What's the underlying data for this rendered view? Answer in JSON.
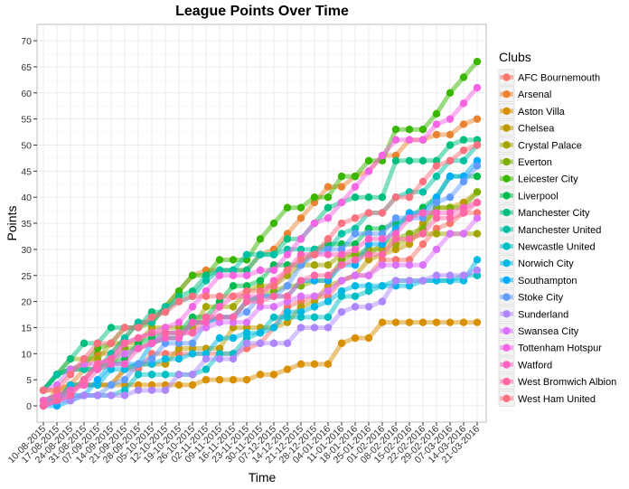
{
  "chart_data": {
    "type": "line",
    "title": "League Points Over Time",
    "xlabel": "Time",
    "ylabel": "Points",
    "ylim": [
      -3,
      73
    ],
    "yticks": [
      0,
      5,
      10,
      15,
      20,
      25,
      30,
      35,
      40,
      45,
      50,
      55,
      60,
      65,
      70
    ],
    "grid": true,
    "legend_title": "Clubs",
    "legend_position": "right",
    "categories": [
      "10-08-2015",
      "17-08-2015",
      "24-08-2015",
      "31-08-2015",
      "07-09-2015",
      "14-09-2015",
      "21-09-2015",
      "28-09-2015",
      "05-10-2015",
      "12-10-2015",
      "19-10-2015",
      "26-10-2015",
      "02-11-2015",
      "09-11-2015",
      "16-11-2015",
      "23-11-2015",
      "30-11-2015",
      "07-12-2015",
      "14-12-2015",
      "21-12-2015",
      "28-12-2015",
      "04-01-2016",
      "11-01-2016",
      "18-01-2016",
      "25-01-2016",
      "01-02-2016",
      "08-02-2016",
      "15-02-2016",
      "22-02-2016",
      "29-02-2016",
      "07-03-2016",
      "14-03-2016",
      "21-03-2016"
    ],
    "series": [
      {
        "name": "AFC Bournemouth",
        "color": "#F8766D",
        "values": [
          0,
          1,
          4,
          4,
          4,
          4,
          7,
          7,
          10,
          10,
          10,
          10,
          10,
          10,
          10,
          11,
          12,
          15,
          19,
          20,
          21,
          21,
          24,
          25,
          25,
          28,
          28,
          28,
          31,
          34,
          35,
          37,
          37
        ]
      },
      {
        "name": "Arsenal",
        "color": "#EA8331",
        "values": [
          0,
          3,
          4,
          7,
          10,
          10,
          13,
          16,
          16,
          19,
          22,
          25,
          26,
          26,
          26,
          26,
          29,
          30,
          33,
          36,
          39,
          42,
          42,
          44,
          45,
          48,
          48,
          51,
          51,
          52,
          52,
          54,
          55
        ]
      },
      {
        "name": "Aston Villa",
        "color": "#D89000",
        "values": [
          3,
          3,
          4,
          4,
          4,
          4,
          4,
          4,
          4,
          4,
          4,
          4,
          5,
          5,
          5,
          5,
          6,
          6,
          7,
          8,
          8,
          8,
          12,
          13,
          13,
          16,
          16,
          16,
          16,
          16,
          16,
          16,
          16
        ]
      },
      {
        "name": "Chelsea",
        "color": "#C09B00",
        "values": [
          1,
          1,
          4,
          4,
          4,
          4,
          7,
          8,
          8,
          8,
          11,
          11,
          11,
          11,
          15,
          15,
          15,
          15,
          16,
          19,
          20,
          23,
          24,
          25,
          28,
          29,
          30,
          31,
          35,
          38,
          38,
          39,
          41
        ]
      },
      {
        "name": "Crystal Palace",
        "color": "#A3A500",
        "values": [
          3,
          6,
          9,
          9,
          9,
          12,
          12,
          12,
          15,
          15,
          15,
          15,
          19,
          19,
          19,
          22,
          23,
          23,
          25,
          27,
          27,
          27,
          29,
          29,
          30,
          30,
          31,
          32,
          33,
          33,
          33,
          33,
          33
        ]
      },
      {
        "name": "Everton",
        "color": "#7CAE00",
        "values": [
          1,
          2,
          3,
          5,
          8,
          8,
          11,
          11,
          12,
          13,
          13,
          16,
          16,
          17,
          17,
          20,
          21,
          22,
          23,
          23,
          24,
          24,
          28,
          29,
          29,
          31,
          32,
          33,
          34,
          38,
          38,
          38,
          41
        ]
      },
      {
        "name": "Leicester City",
        "color": "#39B600",
        "values": [
          3,
          6,
          7,
          8,
          11,
          12,
          15,
          15,
          16,
          19,
          22,
          25,
          25,
          28,
          28,
          28,
          32,
          35,
          38,
          38,
          40,
          40,
          44,
          44,
          47,
          47,
          53,
          53,
          53,
          56,
          60,
          63,
          66
        ]
      },
      {
        "name": "Liverpool",
        "color": "#00BB4E",
        "values": [
          3,
          6,
          7,
          7,
          7,
          8,
          9,
          12,
          13,
          14,
          14,
          17,
          17,
          20,
          23,
          23,
          24,
          27,
          27,
          27,
          30,
          31,
          31,
          31,
          34,
          34,
          35,
          36,
          38,
          40,
          44,
          44,
          44
        ]
      },
      {
        "name": "Manchester City",
        "color": "#00BF7D",
        "values": [
          3,
          6,
          9,
          12,
          12,
          15,
          15,
          15,
          18,
          18,
          21,
          22,
          25,
          26,
          26,
          26,
          29,
          29,
          32,
          32,
          35,
          38,
          39,
          40,
          40,
          40,
          47,
          47,
          47,
          47,
          50,
          51,
          51
        ]
      },
      {
        "name": "Manchester United",
        "color": "#00C1A3",
        "values": [
          3,
          6,
          7,
          7,
          7,
          10,
          13,
          16,
          16,
          19,
          20,
          21,
          24,
          26,
          26,
          29,
          29,
          29,
          30,
          30,
          30,
          30,
          33,
          34,
          37,
          37,
          40,
          41,
          41,
          44,
          47,
          47,
          50
        ]
      },
      {
        "name": "Newcastle United",
        "color": "#00BFC4",
        "values": [
          1,
          1,
          2,
          2,
          2,
          2,
          3,
          6,
          6,
          6,
          6,
          6,
          7,
          10,
          10,
          13,
          14,
          17,
          17,
          17,
          17,
          17,
          21,
          21,
          22,
          23,
          24,
          24,
          24,
          24,
          24,
          25,
          25
        ]
      },
      {
        "name": "Norwich City",
        "color": "#00B9E3",
        "values": [
          0,
          1,
          4,
          4,
          4,
          7,
          7,
          8,
          8,
          9,
          9,
          10,
          10,
          13,
          13,
          14,
          14,
          15,
          18,
          18,
          19,
          20,
          22,
          23,
          23,
          23,
          23,
          23,
          24,
          24,
          24,
          24,
          28
        ]
      },
      {
        "name": "Southampton",
        "color": "#00ADFA",
        "values": [
          0,
          0,
          1,
          2,
          5,
          8,
          8,
          8,
          12,
          13,
          13,
          16,
          16,
          17,
          17,
          20,
          21,
          21,
          21,
          24,
          24,
          24,
          27,
          27,
          31,
          31,
          34,
          37,
          37,
          40,
          44,
          44,
          47
        ]
      },
      {
        "name": "Stoke City",
        "color": "#619CFF",
        "values": [
          1,
          2,
          2,
          2,
          2,
          4,
          5,
          8,
          9,
          12,
          12,
          12,
          16,
          17,
          17,
          18,
          21,
          21,
          23,
          27,
          29,
          30,
          30,
          33,
          33,
          33,
          36,
          36,
          36,
          39,
          40,
          43,
          46
        ]
      },
      {
        "name": "Sunderland",
        "color": "#AE87FF",
        "values": [
          0,
          1,
          1,
          2,
          2,
          2,
          2,
          3,
          3,
          3,
          6,
          6,
          9,
          9,
          9,
          12,
          12,
          12,
          12,
          15,
          15,
          15,
          18,
          19,
          19,
          20,
          24,
          24,
          24,
          25,
          25,
          25,
          26
        ]
      },
      {
        "name": "Swansea City",
        "color": "#DB72FB",
        "values": [
          3,
          4,
          7,
          8,
          8,
          9,
          10,
          11,
          12,
          14,
          14,
          14,
          15,
          16,
          16,
          16,
          19,
          19,
          20,
          21,
          21,
          22,
          24,
          25,
          25,
          27,
          27,
          27,
          27,
          30,
          33,
          33,
          36
        ]
      },
      {
        "name": "Tottenham Hotspur",
        "color": "#F564E3",
        "values": [
          0,
          1,
          2,
          5,
          8,
          9,
          12,
          13,
          14,
          15,
          16,
          19,
          22,
          25,
          25,
          25,
          26,
          26,
          29,
          32,
          35,
          36,
          39,
          42,
          45,
          48,
          51,
          51,
          51,
          54,
          55,
          58,
          61
        ]
      },
      {
        "name": "Watford",
        "color": "#FF61C3",
        "values": [
          1,
          2,
          3,
          4,
          7,
          8,
          8,
          11,
          12,
          13,
          13,
          16,
          16,
          19,
          21,
          21,
          21,
          24,
          26,
          29,
          29,
          29,
          29,
          30,
          32,
          32,
          33,
          36,
          37,
          37,
          37,
          38,
          39
        ]
      },
      {
        "name": "West Bromwich Albion",
        "color": "#FF67A4",
        "values": [
          0,
          1,
          2,
          5,
          8,
          9,
          12,
          13,
          14,
          14,
          14,
          14,
          17,
          17,
          17,
          20,
          20,
          21,
          21,
          24,
          25,
          25,
          27,
          28,
          29,
          29,
          32,
          32,
          33,
          36,
          36,
          37,
          39
        ]
      },
      {
        "name": "West Ham United",
        "color": "#FC717F",
        "values": [
          3,
          3,
          6,
          9,
          12,
          12,
          15,
          15,
          17,
          18,
          20,
          21,
          21,
          21,
          21,
          22,
          22,
          23,
          26,
          28,
          29,
          32,
          35,
          36,
          37,
          37,
          40,
          40,
          43,
          46,
          47,
          49,
          50
        ]
      }
    ]
  }
}
